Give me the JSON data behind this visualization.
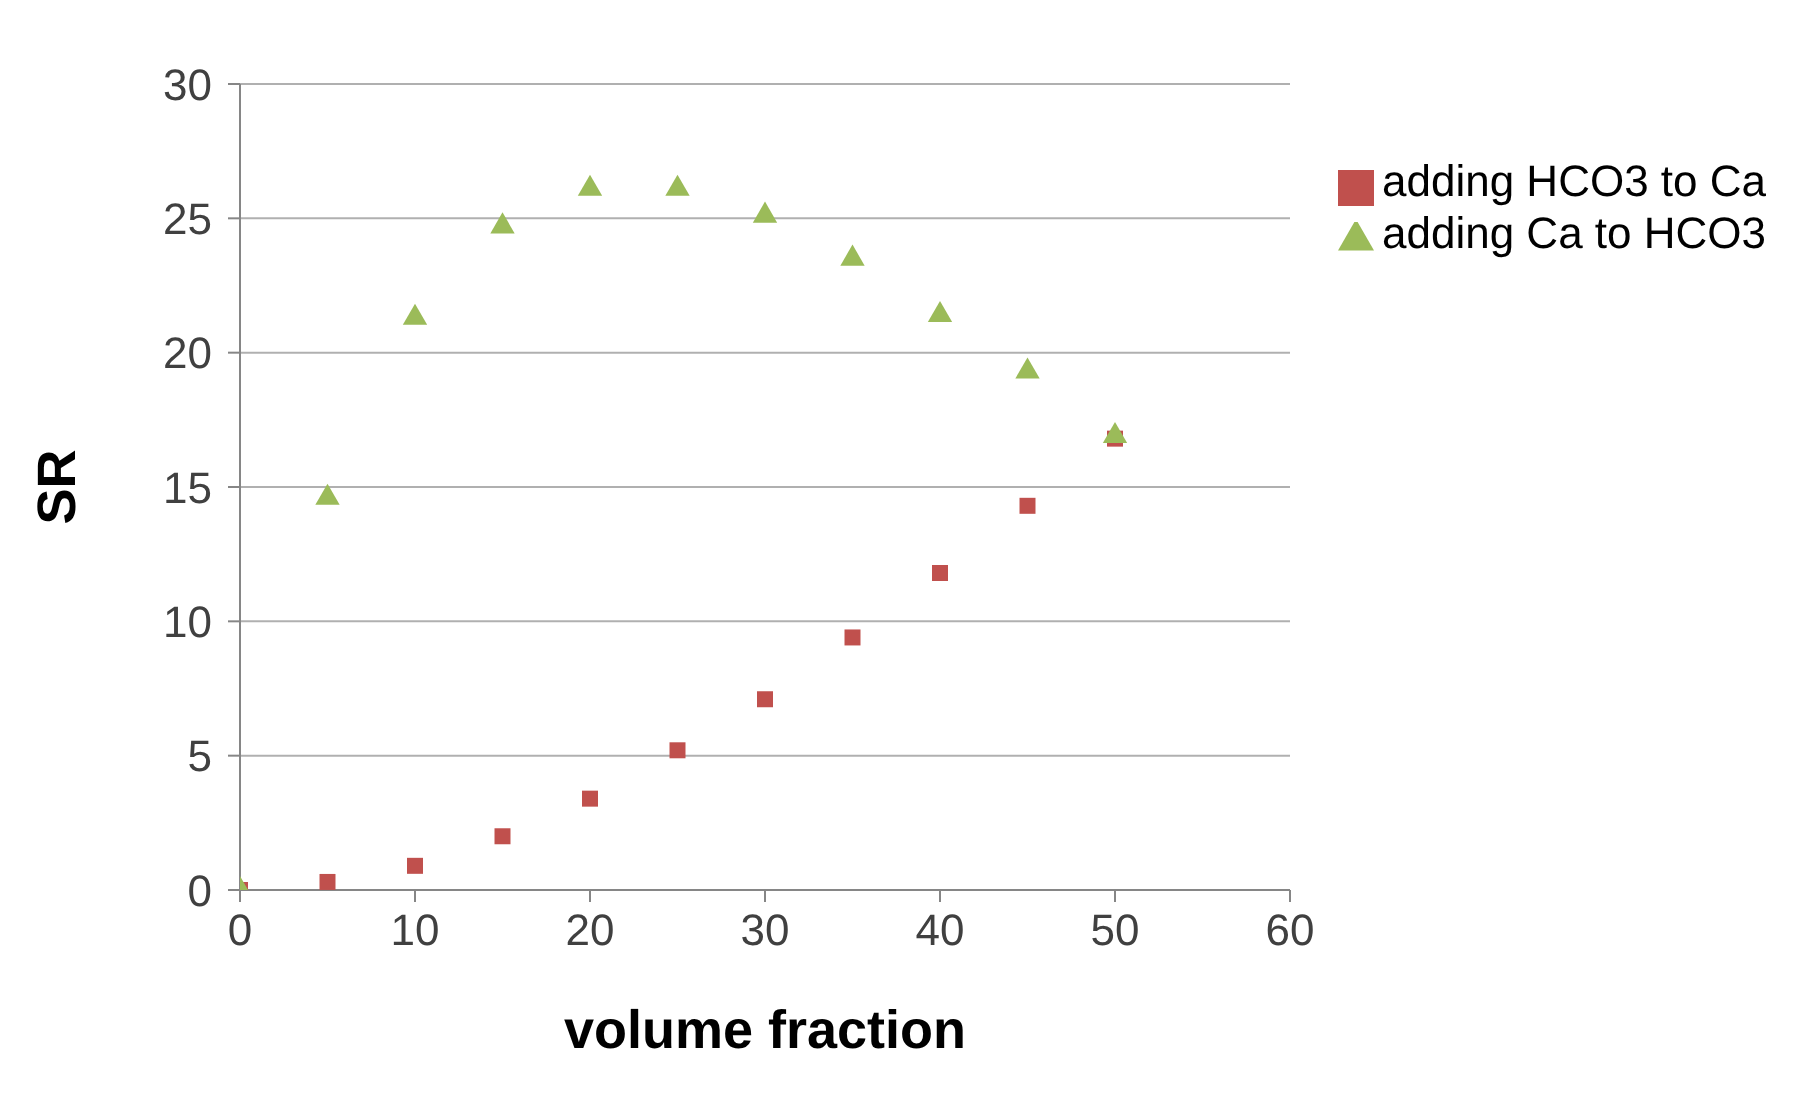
{
  "chart_data": {
    "type": "scatter",
    "xlabel": "volume fraction",
    "ylabel": "SR",
    "xlim": [
      0,
      60
    ],
    "xticks": [
      0,
      10,
      20,
      30,
      40,
      50,
      60
    ],
    "ylim": [
      0,
      30
    ],
    "yticks": [
      0,
      5,
      10,
      15,
      20,
      25,
      30
    ],
    "grid": "y",
    "legend": "top right",
    "x": [
      0,
      5,
      10,
      15,
      20,
      25,
      30,
      35,
      40,
      45,
      50
    ],
    "series": [
      {
        "name": "adding HCO3 to Ca",
        "color": "#c0504d",
        "marker": "square",
        "values": [
          0,
          0.3,
          0.9,
          2.0,
          3.4,
          5.2,
          7.1,
          9.4,
          11.8,
          14.3,
          16.8
        ]
      },
      {
        "name": "adding Ca to HCO3",
        "color": "#9bbb59",
        "marker": "triangle",
        "values": [
          0,
          14.6,
          21.3,
          24.7,
          26.1,
          26.1,
          25.1,
          23.5,
          21.4,
          19.3,
          16.9
        ]
      }
    ]
  }
}
